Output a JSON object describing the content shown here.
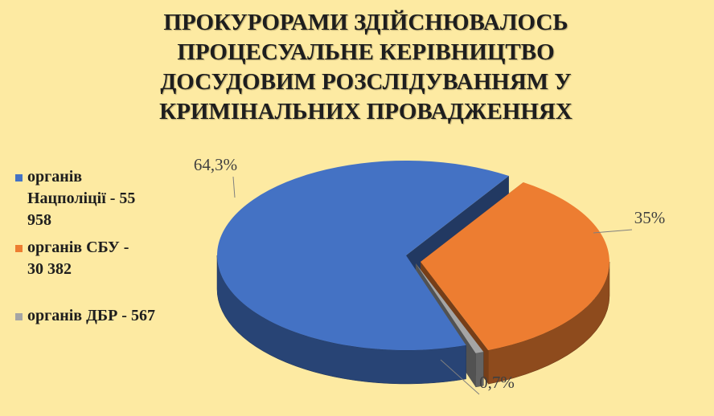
{
  "chart_data": {
    "type": "pie",
    "title": "ПРОКУРОРАМИ ЗДІЙСНЮВАЛОСЬ ПРОЦЕСУАЛЬНЕ КЕРІВНИЦТВО ДОСУДОВИМ РОЗСЛІДУВАННЯМ У КРИМІНАЛЬНИХ ПРОВАДЖЕННЯХ",
    "categories": [
      "органів Нацполіції - 55 958",
      "органів СБУ - 30 382",
      "органів ДБР - 567"
    ],
    "values": [
      64.3,
      35,
      0.7
    ],
    "value_labels": [
      "64,3%",
      "35%",
      "0,7%"
    ],
    "colors": [
      "#4472c4",
      "#ed7d31",
      "#a5a5a5"
    ],
    "legend": "left"
  }
}
